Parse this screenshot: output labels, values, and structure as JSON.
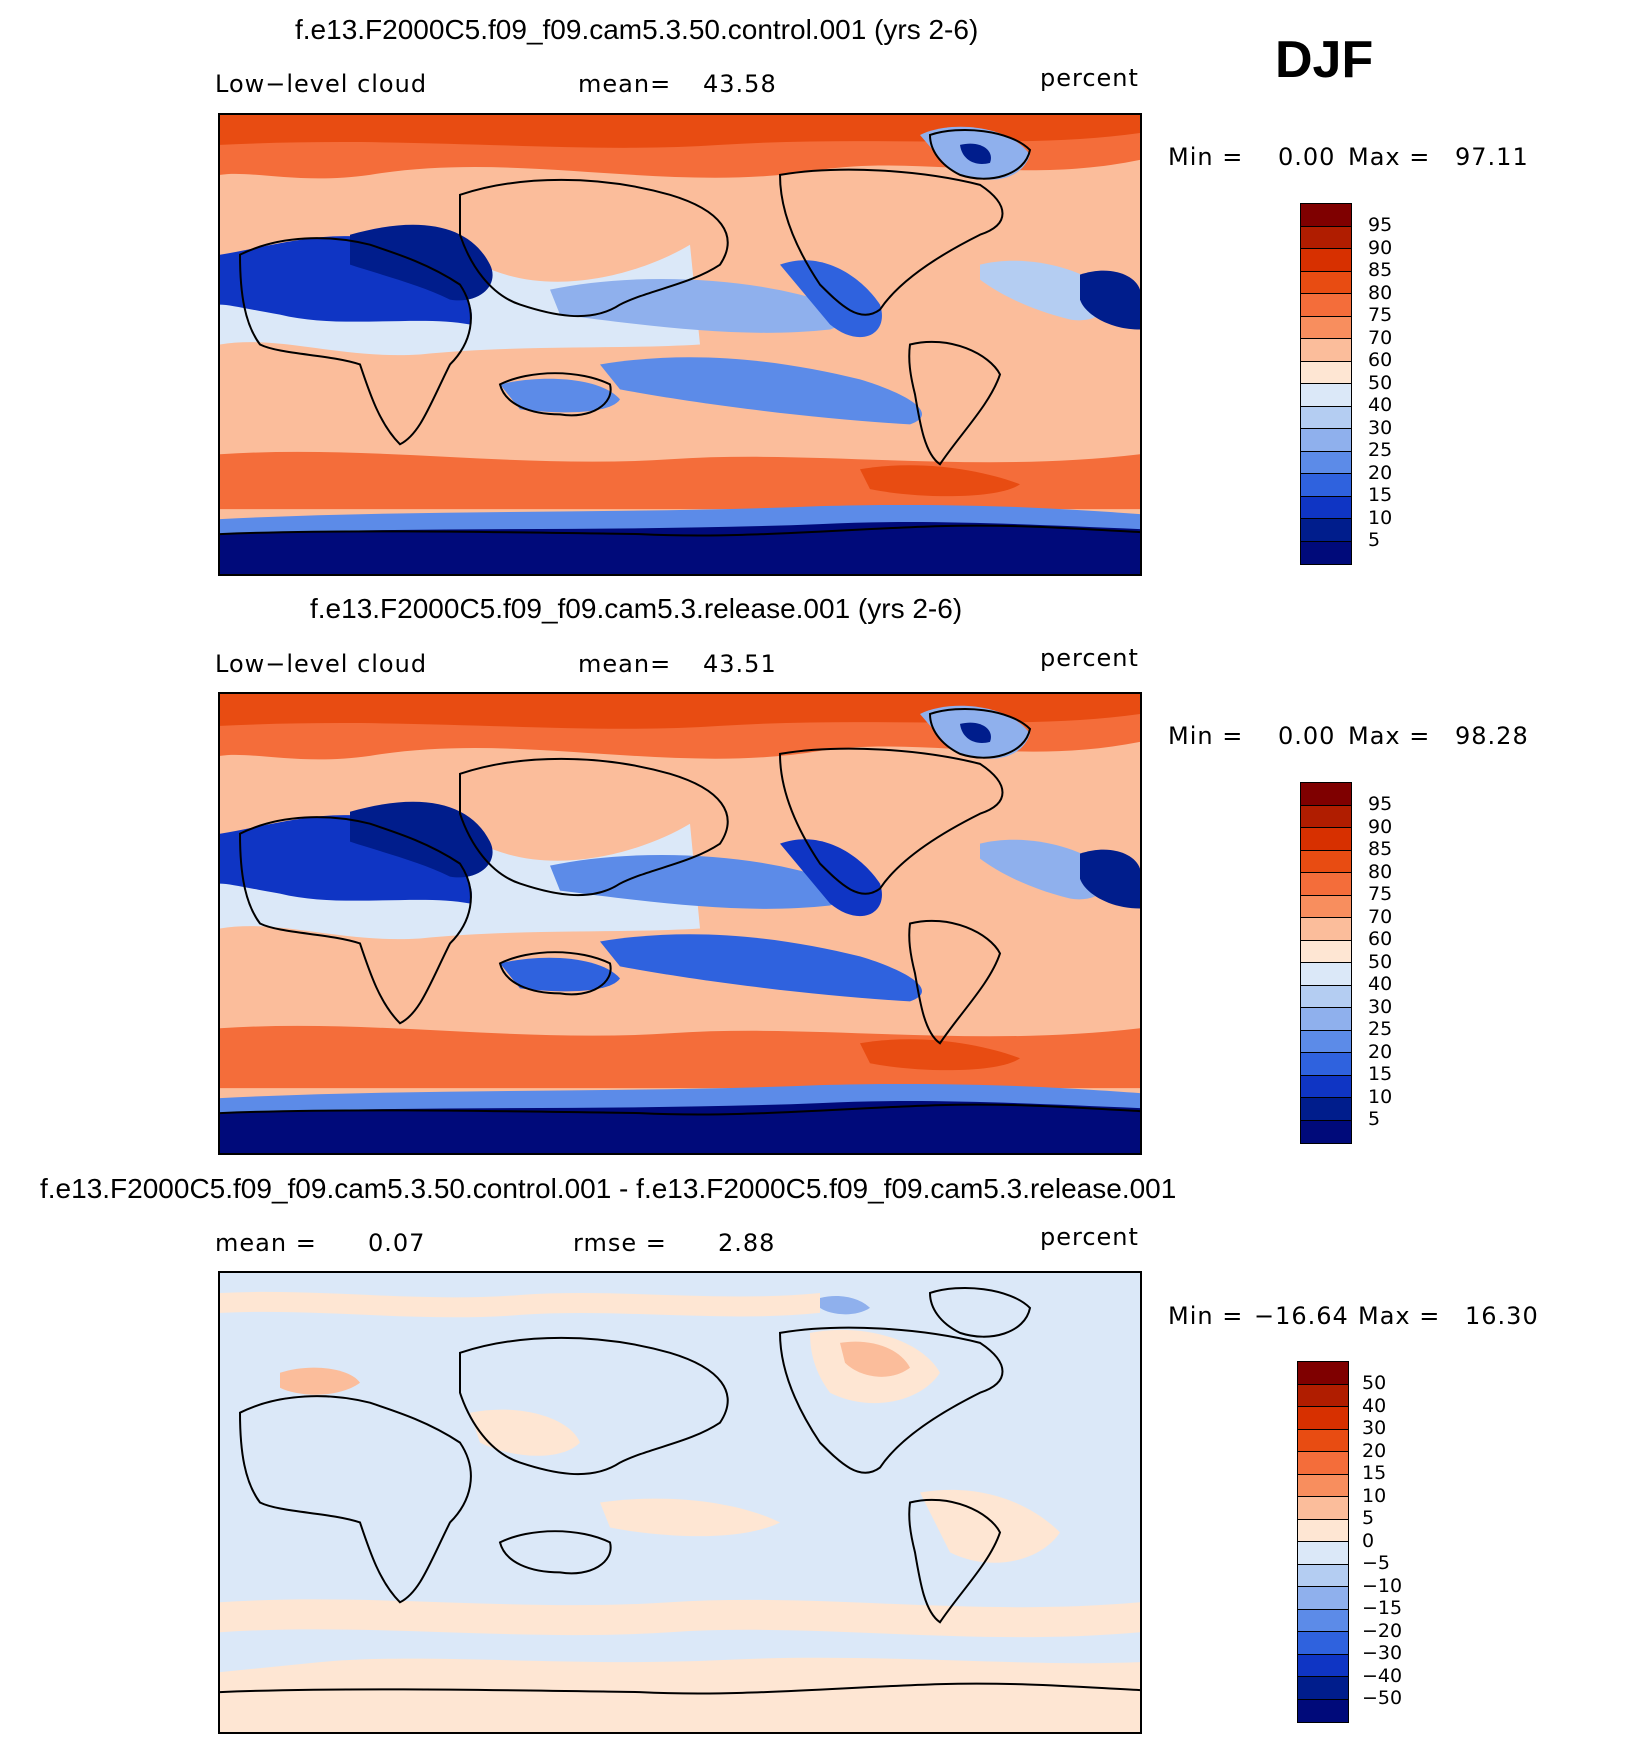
{
  "season": "DJF",
  "panels": [
    {
      "title": "f.e13.F2000C5.f09_f09.cam5.3.50.control.001 (yrs 2-6)",
      "left_label": "Low−level cloud",
      "center_label": "mean=",
      "center_value": "43.58",
      "units": "percent",
      "minmax": {
        "min_label": "Min =",
        "min": "0.00",
        "max_label": "Max =",
        "max": "97.11"
      },
      "colorbar_levels": [
        "95",
        "90",
        "85",
        "80",
        "75",
        "70",
        "60",
        "50",
        "40",
        "30",
        "25",
        "20",
        "15",
        "10",
        "5"
      ]
    },
    {
      "title": "f.e13.F2000C5.f09_f09.cam5.3.release.001 (yrs 2-6)",
      "left_label": "Low−level cloud",
      "center_label": "mean=",
      "center_value": "43.51",
      "units": "percent",
      "minmax": {
        "min_label": "Min =",
        "min": "0.00",
        "max_label": "Max =",
        "max": "98.28"
      },
      "colorbar_levels": [
        "95",
        "90",
        "85",
        "80",
        "75",
        "70",
        "60",
        "50",
        "40",
        "30",
        "25",
        "20",
        "15",
        "10",
        "5"
      ]
    },
    {
      "title": "f.e13.F2000C5.f09_f09.cam5.3.50.control.001 - f.e13.F2000C5.f09_f09.cam5.3.release.001",
      "left_label": "mean =",
      "left_value": "0.07",
      "center_label": "rmse =",
      "center_value": "2.88",
      "units": "percent",
      "minmax": {
        "min_label": "Min =",
        "min": "−16.64",
        "max_label": "Max =",
        "max": "16.30"
      },
      "colorbar_levels": [
        "50",
        "40",
        "30",
        "20",
        "15",
        "10",
        "5",
        "0",
        "−5",
        "−10",
        "−15",
        "−20",
        "−30",
        "−40",
        "−50"
      ]
    }
  ],
  "colors": {
    "scale": [
      "#7f0000",
      "#b01d00",
      "#d73000",
      "#e84c12",
      "#f46d3a",
      "#f88e5e",
      "#fbbd9b",
      "#fee6d3",
      "#dbe8f8",
      "#b4cdf2",
      "#8fb0ed",
      "#5c8be8",
      "#2f62de",
      "#0f35c4",
      "#001d8c",
      "#000a7a"
    ]
  }
}
